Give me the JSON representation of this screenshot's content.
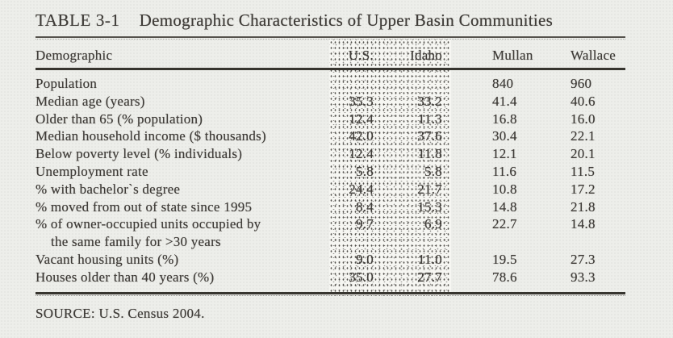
{
  "title": {
    "tag": "TABLE 3-1",
    "text": "Demographic Characteristics of Upper Basin Communities"
  },
  "columns": {
    "demographic": "Demographic",
    "us": "U.S.",
    "idaho": "Idaho",
    "mullan": "Mullan",
    "wallace": "Wallace"
  },
  "rows": [
    {
      "label": "Population",
      "us": "",
      "idaho": "",
      "mullan": "840",
      "wallace": "960"
    },
    {
      "label": "Median age (years)",
      "us": "35.3",
      "idaho": "33.2",
      "mullan": "41.4",
      "wallace": "40.6"
    },
    {
      "label": "Older than 65 (% population)",
      "us": "12.4",
      "idaho": "11.3",
      "mullan": "16.8",
      "wallace": "16.0"
    },
    {
      "label": "Median household income ($ thousands)",
      "us": "42.0",
      "idaho": "37.6",
      "mullan": "30.4",
      "wallace": "22.1"
    },
    {
      "label": "Below poverty level (% individuals)",
      "us": "12.4",
      "idaho": "11.8",
      "mullan": "12.1",
      "wallace": "20.1"
    },
    {
      "label": "Unemployment rate",
      "us": "5.8",
      "idaho": "5.8",
      "mullan": "11.6",
      "wallace": "11.5"
    },
    {
      "label": "% with bachelor`s degree",
      "us": "24.4",
      "idaho": "21.7",
      "mullan": "10.8",
      "wallace": "17.2"
    },
    {
      "label": "% moved from out of state since 1995",
      "us": "8.4",
      "idaho": "15.3",
      "mullan": "14.8",
      "wallace": "21.8"
    },
    {
      "label": "% of owner-occupied units occupied by",
      "label2": "the same family for >30 years",
      "us": "9.7",
      "idaho": "6.9",
      "mullan": "22.7",
      "wallace": "14.8"
    },
    {
      "label": "Vacant housing units (%)",
      "us": "9.0",
      "idaho": "11.0",
      "mullan": "19.5",
      "wallace": "27.3"
    },
    {
      "label": "Houses older than 40 years (%)",
      "us": "35.0",
      "idaho": "27.7",
      "mullan": "78.6",
      "wallace": "93.3"
    }
  ],
  "source": "SOURCE: U.S. Census 2004.",
  "colors": {
    "page_bg": "#edeeea",
    "text": "#3e3b37",
    "rule": "#37352f",
    "shade_bg": "#f6f6f2"
  }
}
